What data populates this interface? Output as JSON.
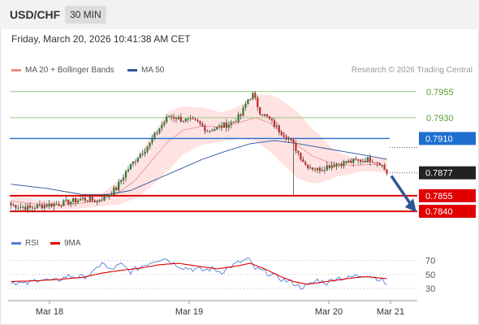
{
  "header": {
    "symbol": "USD/CHF",
    "timeframe": "30 MIN"
  },
  "datetime": "Friday, March 20, 2026 10:41:38 AM CET",
  "legend": {
    "bb_label": "MA 20 + Bollinger Bands",
    "ma50_label": "MA 50",
    "credit": "Research © 2026 Trading Central",
    "rsi_label": "RSI",
    "rsi_ma_label": "9MA"
  },
  "colors": {
    "up": "#2e7d32",
    "down": "#c62828",
    "bb_fill": "#ffd9d9",
    "bb_line": "#e88a8a",
    "ma50": "#2f5597",
    "resistance": "#9bc57d",
    "support": "#e00000",
    "pivot": "#1f6fd1",
    "rsi": "#4f7fd9",
    "rsi_ma": "#e00000"
  },
  "chart_data": [
    {
      "type": "candlestick",
      "title": "",
      "ylim": [
        0.7826,
        0.7965
      ],
      "x_ticks": [
        "Mar 18",
        "Mar 19",
        "Mar 20",
        "Mar 21"
      ],
      "levels": [
        {
          "value": 0.7955,
          "label": "0.7955",
          "kind": "resistance"
        },
        {
          "value": 0.793,
          "label": "0.7930",
          "kind": "resistance"
        },
        {
          "value": 0.791,
          "label": "0.7910",
          "kind": "pivot"
        },
        {
          "value": 0.7877,
          "label": "0.7877",
          "kind": "last"
        },
        {
          "value": 0.7855,
          "label": "0.7855",
          "kind": "support"
        },
        {
          "value": 0.784,
          "label": "0.7840",
          "kind": "support"
        }
      ],
      "series_close_anchors": [
        [
          0,
          0.7846
        ],
        [
          8,
          0.7843
        ],
        [
          14,
          0.7846
        ],
        [
          22,
          0.7848
        ],
        [
          30,
          0.7852
        ],
        [
          36,
          0.785
        ],
        [
          40,
          0.7855
        ],
        [
          44,
          0.7862
        ],
        [
          48,
          0.7878
        ],
        [
          53,
          0.7893
        ],
        [
          58,
          0.7905
        ],
        [
          62,
          0.792
        ],
        [
          66,
          0.7932
        ],
        [
          72,
          0.7928
        ],
        [
          78,
          0.7925
        ],
        [
          82,
          0.7918
        ],
        [
          86,
          0.792
        ],
        [
          92,
          0.7925
        ],
        [
          96,
          0.7932
        ],
        [
          99,
          0.7948
        ],
        [
          101,
          0.7952
        ],
        [
          104,
          0.7936
        ],
        [
          108,
          0.7928
        ],
        [
          112,
          0.7918
        ],
        [
          116,
          0.791
        ],
        [
          119,
          0.79
        ],
        [
          123,
          0.7885
        ],
        [
          128,
          0.788
        ],
        [
          134,
          0.7885
        ],
        [
          140,
          0.7887
        ],
        [
          146,
          0.7889
        ],
        [
          150,
          0.789
        ],
        [
          154,
          0.7887
        ],
        [
          157,
          0.7877
        ]
      ],
      "ma20_anchors": [
        [
          0,
          0.785
        ],
        [
          10,
          0.7847
        ],
        [
          20,
          0.7846
        ],
        [
          30,
          0.7848
        ],
        [
          38,
          0.7851
        ],
        [
          45,
          0.7858
        ],
        [
          52,
          0.787
        ],
        [
          60,
          0.7892
        ],
        [
          66,
          0.7908
        ],
        [
          72,
          0.7918
        ],
        [
          80,
          0.7922
        ],
        [
          88,
          0.7921
        ],
        [
          95,
          0.7925
        ],
        [
          102,
          0.793
        ],
        [
          108,
          0.7925
        ],
        [
          114,
          0.7915
        ],
        [
          120,
          0.7903
        ],
        [
          126,
          0.7893
        ],
        [
          134,
          0.7886
        ],
        [
          142,
          0.7884
        ],
        [
          150,
          0.7885
        ],
        [
          157,
          0.7884
        ]
      ],
      "bb_width_anchors": [
        [
          0,
          0.0005
        ],
        [
          20,
          0.0004
        ],
        [
          38,
          0.0006
        ],
        [
          48,
          0.0014
        ],
        [
          58,
          0.0024
        ],
        [
          66,
          0.0028
        ],
        [
          76,
          0.002
        ],
        [
          88,
          0.0014
        ],
        [
          96,
          0.0016
        ],
        [
          104,
          0.0024
        ],
        [
          112,
          0.003
        ],
        [
          120,
          0.0032
        ],
        [
          128,
          0.0024
        ],
        [
          136,
          0.0012
        ],
        [
          146,
          0.0006
        ],
        [
          157,
          0.0007
        ]
      ],
      "ma50_anchors": [
        [
          0,
          0.7866
        ],
        [
          15,
          0.7862
        ],
        [
          30,
          0.7856
        ],
        [
          40,
          0.7856
        ],
        [
          50,
          0.786
        ],
        [
          60,
          0.787
        ],
        [
          70,
          0.788
        ],
        [
          80,
          0.789
        ],
        [
          90,
          0.7898
        ],
        [
          100,
          0.7905
        ],
        [
          110,
          0.7908
        ],
        [
          120,
          0.7905
        ],
        [
          130,
          0.7901
        ],
        [
          140,
          0.7897
        ],
        [
          150,
          0.7893
        ],
        [
          157,
          0.789
        ]
      ],
      "forecast_target": 0.784
    },
    {
      "type": "line",
      "title": "RSI",
      "ylim": [
        22,
        80
      ],
      "y_ticks": [
        {
          "value": 70,
          "label": "70"
        },
        {
          "value": 50,
          "label": "50"
        },
        {
          "value": 30,
          "label": "30"
        }
      ],
      "rsi_anchors": [
        [
          0,
          40
        ],
        [
          6,
          36
        ],
        [
          12,
          44
        ],
        [
          18,
          40
        ],
        [
          24,
          48
        ],
        [
          30,
          46
        ],
        [
          35,
          54
        ],
        [
          38,
          68
        ],
        [
          41,
          56
        ],
        [
          46,
          64
        ],
        [
          50,
          54
        ],
        [
          56,
          64
        ],
        [
          60,
          70
        ],
        [
          64,
          74
        ],
        [
          68,
          66
        ],
        [
          72,
          60
        ],
        [
          76,
          58
        ],
        [
          80,
          56
        ],
        [
          84,
          58
        ],
        [
          88,
          54
        ],
        [
          92,
          62
        ],
        [
          96,
          68
        ],
        [
          99,
          72
        ],
        [
          102,
          58
        ],
        [
          106,
          54
        ],
        [
          110,
          48
        ],
        [
          114,
          42
        ],
        [
          118,
          38
        ],
        [
          121,
          32
        ],
        [
          124,
          34
        ],
        [
          128,
          42
        ],
        [
          132,
          38
        ],
        [
          136,
          46
        ],
        [
          140,
          44
        ],
        [
          144,
          48
        ],
        [
          148,
          50
        ],
        [
          152,
          46
        ],
        [
          155,
          42
        ],
        [
          157,
          36
        ]
      ],
      "rsi_ma_anchors": [
        [
          0,
          40
        ],
        [
          10,
          41
        ],
        [
          20,
          43
        ],
        [
          30,
          46
        ],
        [
          38,
          52
        ],
        [
          46,
          56
        ],
        [
          54,
          59
        ],
        [
          62,
          64
        ],
        [
          70,
          66
        ],
        [
          78,
          62
        ],
        [
          86,
          58
        ],
        [
          94,
          62
        ],
        [
          100,
          66
        ],
        [
          106,
          58
        ],
        [
          112,
          48
        ],
        [
          118,
          40
        ],
        [
          124,
          36
        ],
        [
          132,
          40
        ],
        [
          140,
          44
        ],
        [
          148,
          47
        ],
        [
          157,
          44
        ]
      ]
    }
  ]
}
